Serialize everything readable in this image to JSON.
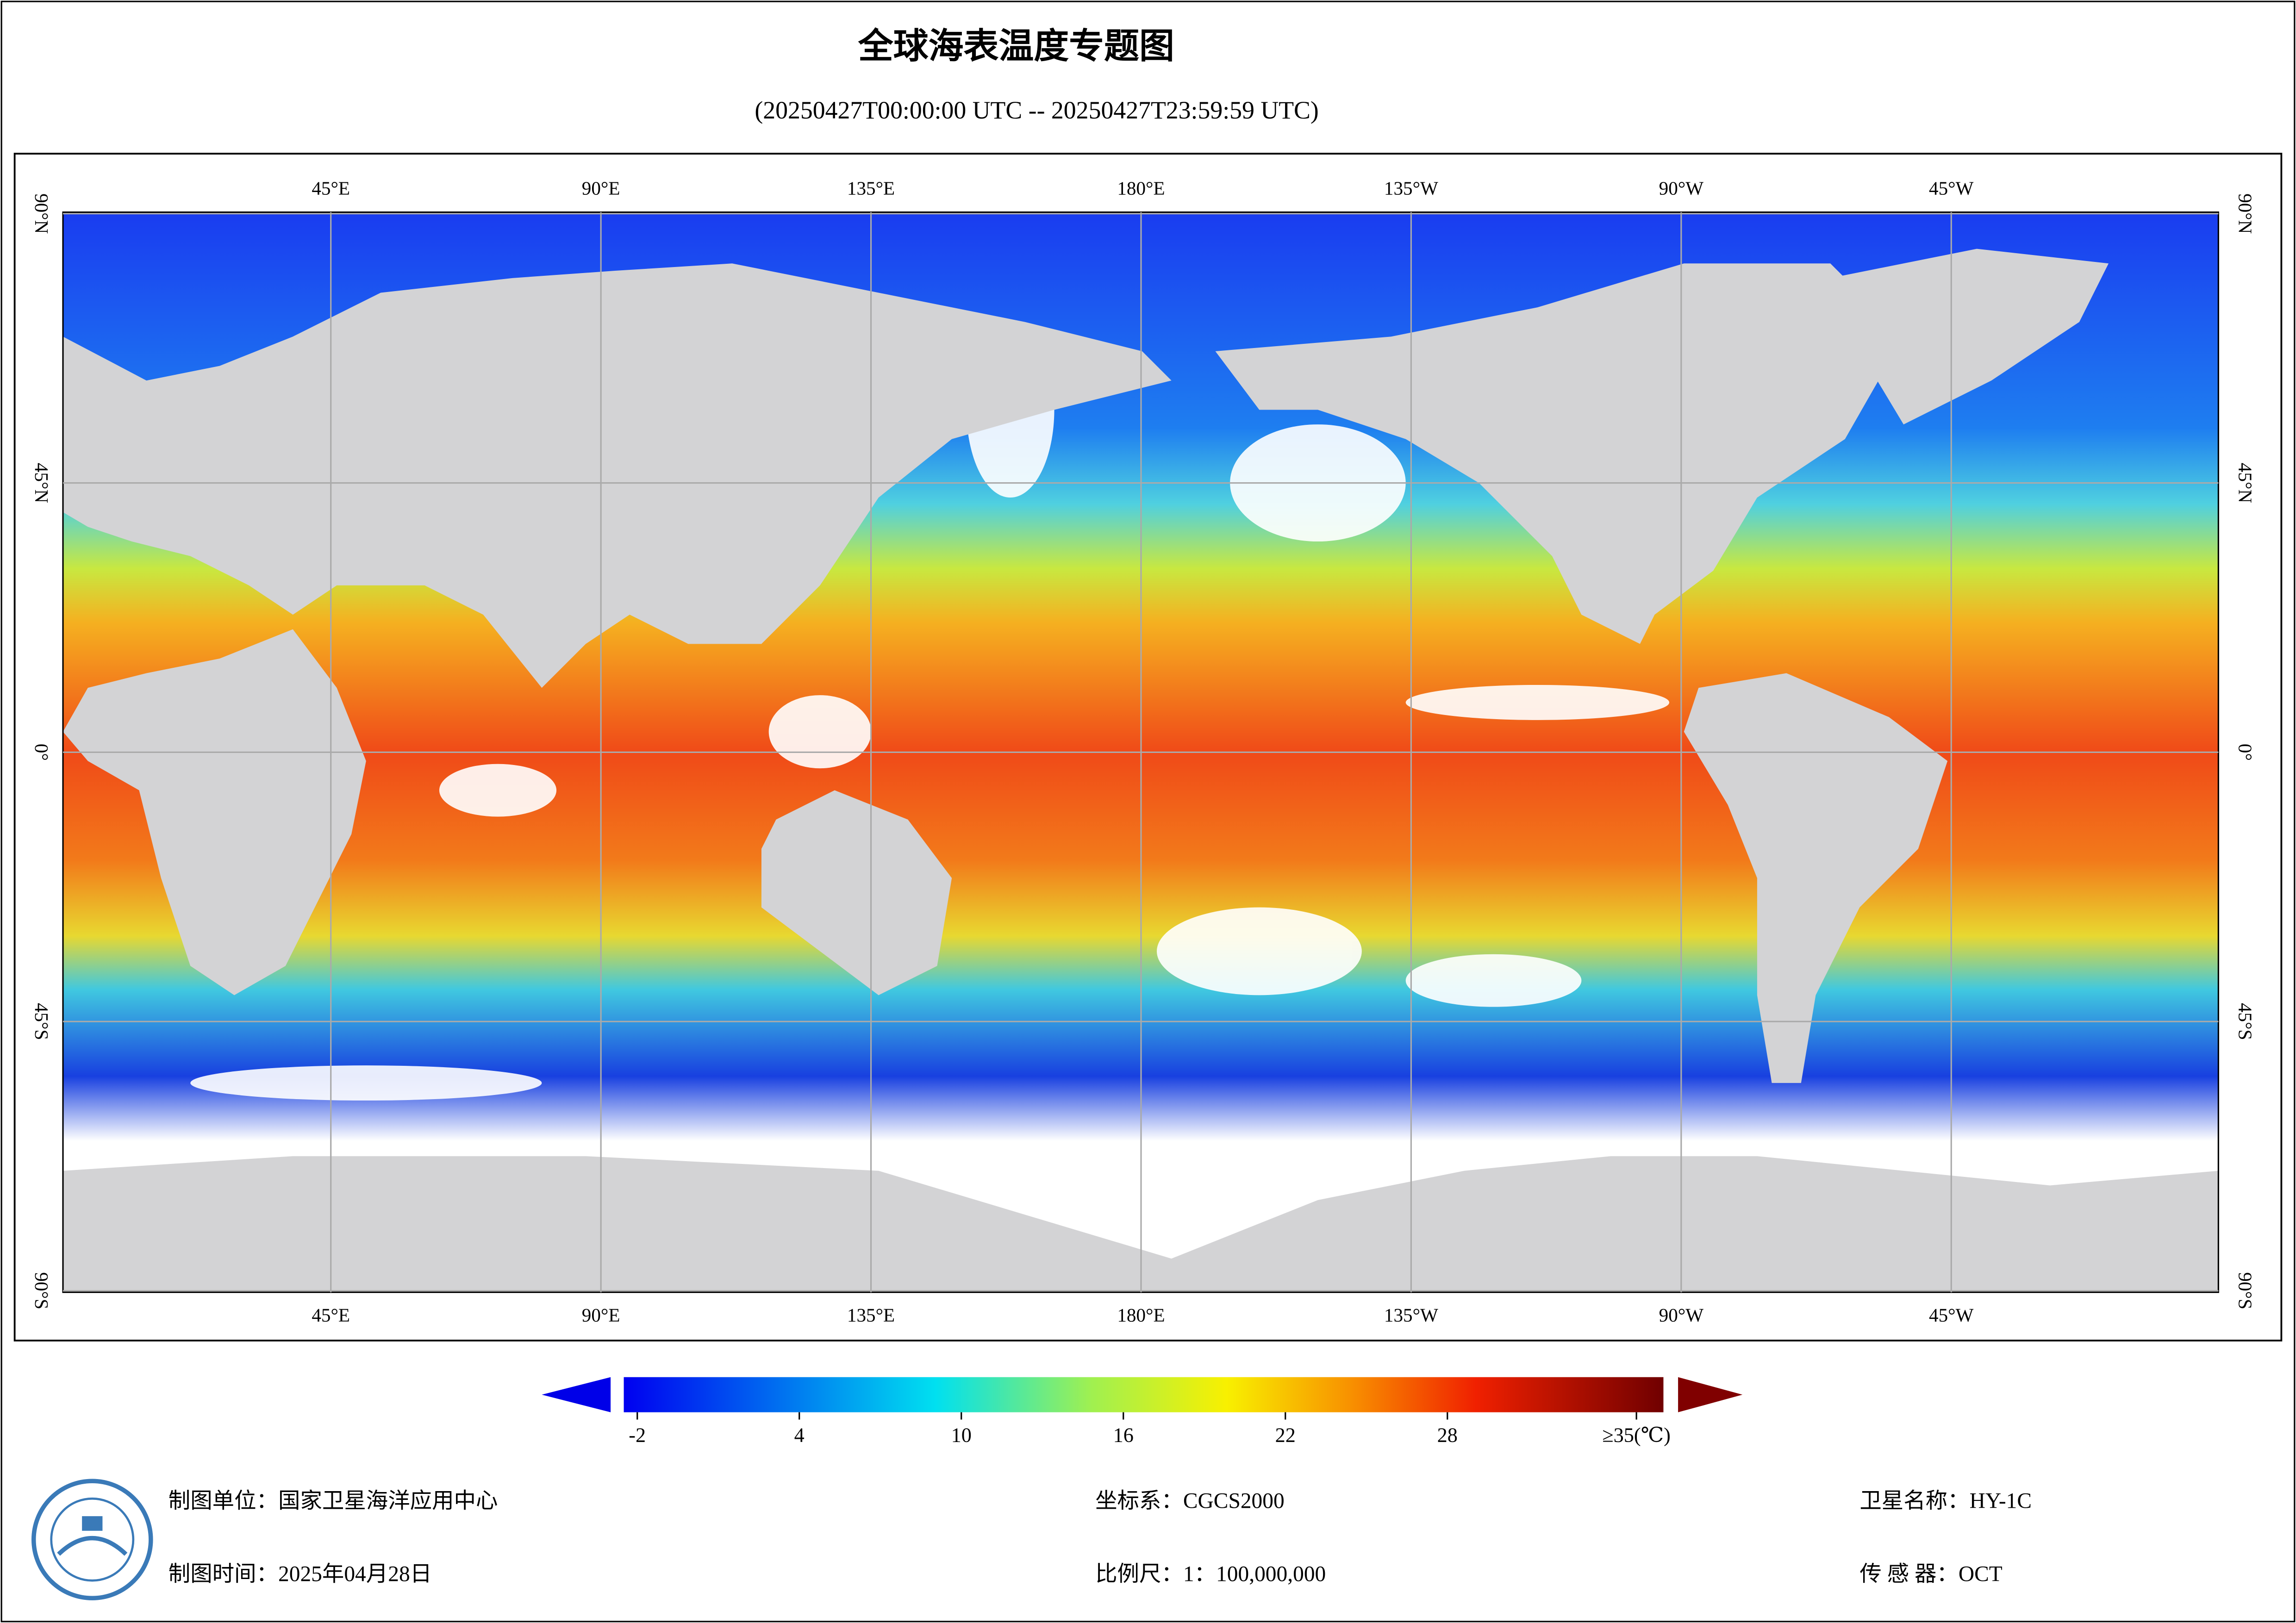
{
  "title": "全球海表温度专题图",
  "subtitle": "(20250427T00:00:00 UTC -- 20250427T23:59:59 UTC)",
  "map": {
    "lonlim": [
      0,
      360
    ],
    "latlim": [
      -90,
      90
    ],
    "lon_ticks": [
      {
        "value": 45,
        "label": "45°E"
      },
      {
        "value": 90,
        "label": "90°E"
      },
      {
        "value": 135,
        "label": "135°E"
      },
      {
        "value": 180,
        "label": "180°E"
      },
      {
        "value": 225,
        "label": "135°W"
      },
      {
        "value": 270,
        "label": "90°W"
      },
      {
        "value": 315,
        "label": "45°W"
      }
    ],
    "lat_ticks": [
      {
        "value": 90,
        "label": "90°N"
      },
      {
        "value": 45,
        "label": "45°N"
      },
      {
        "value": 0,
        "label": "0°"
      },
      {
        "value": -45,
        "label": "45°S"
      },
      {
        "value": -90,
        "label": "90°S"
      }
    ]
  },
  "colorbar": {
    "lim": [
      -2.5,
      36
    ],
    "ticks": [
      -2,
      4,
      10,
      16,
      22,
      28,
      {
        "value": 35,
        "label": "≥35(℃)"
      }
    ]
  },
  "footer": {
    "unit": "制图单位：国家卫星海洋应用中心",
    "time": "制图时间：2025年04月28日",
    "crs": "坐标系：CGCS2000",
    "scale": "比例尺：1：100,000,000",
    "satellite": "卫星名称：HY-1C",
    "sensor": "传 感 器：OCT"
  }
}
